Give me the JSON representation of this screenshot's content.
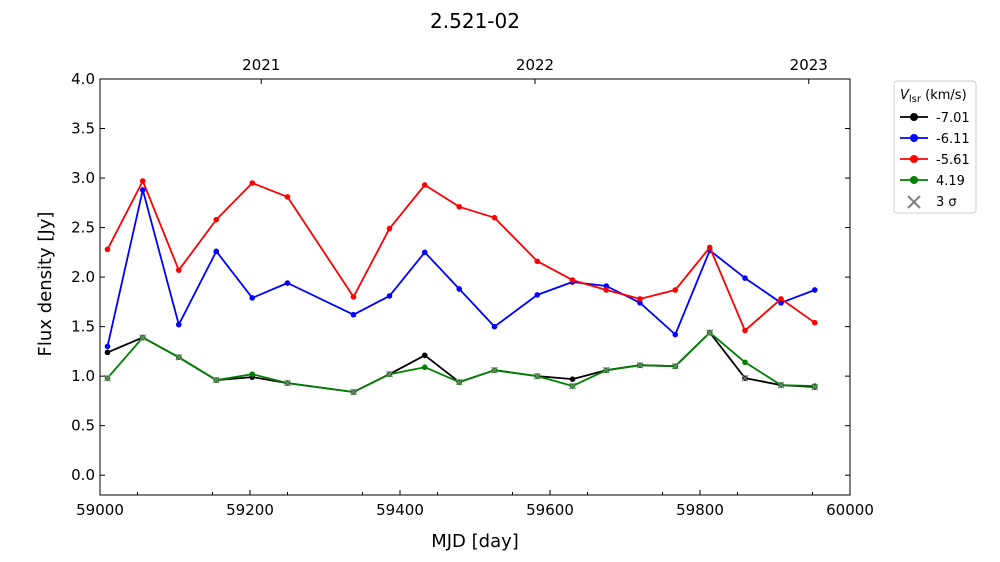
{
  "chart_data": {
    "type": "line",
    "title": "2.521-02",
    "xlabel": "MJD [day]",
    "ylabel": "Flux density [Jy]",
    "xlim": [
      59000,
      60000
    ],
    "ylim": [
      -0.2,
      4.0
    ],
    "xticks": [
      59000,
      59200,
      59400,
      59600,
      59800,
      60000
    ],
    "yticks": [
      0.0,
      0.5,
      1.0,
      1.5,
      2.0,
      2.5,
      3.0,
      3.5,
      4.0
    ],
    "top_axis": {
      "labels": [
        {
          "text": "2021",
          "mjd": 59215
        },
        {
          "text": "2022",
          "mjd": 59580
        },
        {
          "text": "2023",
          "mjd": 59945
        }
      ]
    },
    "grid": false,
    "legend": {
      "placement": "outside-right-top",
      "title_main": "V",
      "title_sub": "lsr",
      "title_unit": " (km/s)",
      "sigma_label": "3 σ"
    },
    "series": [
      {
        "name": "-7.01",
        "color": "#000000",
        "x": [
          59010,
          59057,
          59105,
          59155,
          59203,
          59250,
          59338,
          59386,
          59433,
          59479,
          59526,
          59583,
          59630,
          59675,
          59720,
          59767,
          59813,
          59860,
          59908,
          59953
        ],
        "y": [
          1.24,
          1.39,
          1.19,
          0.96,
          0.99,
          0.93,
          0.84,
          1.02,
          1.21,
          0.94,
          1.06,
          1.0,
          0.97,
          1.06,
          1.11,
          1.1,
          1.44,
          0.98,
          0.91,
          0.89
        ]
      },
      {
        "name": "-6.11",
        "color": "#0000ff",
        "x": [
          59010,
          59057,
          59105,
          59155,
          59203,
          59250,
          59338,
          59386,
          59433,
          59479,
          59526,
          59583,
          59630,
          59675,
          59720,
          59767,
          59813,
          59860,
          59908,
          59953
        ],
        "y": [
          1.3,
          2.88,
          1.52,
          2.26,
          1.79,
          1.94,
          1.62,
          1.81,
          2.25,
          1.88,
          1.5,
          1.82,
          1.95,
          1.91,
          1.74,
          1.42,
          2.27,
          1.99,
          1.74,
          1.87
        ]
      },
      {
        "name": "-5.61",
        "color": "#ff0000",
        "x": [
          59010,
          59057,
          59105,
          59155,
          59203,
          59250,
          59338,
          59386,
          59433,
          59479,
          59526,
          59583,
          59630,
          59675,
          59720,
          59767,
          59813,
          59860,
          59908,
          59953
        ],
        "y": [
          2.28,
          2.97,
          2.07,
          2.58,
          2.95,
          2.81,
          1.8,
          2.49,
          2.93,
          2.71,
          2.6,
          2.16,
          1.97,
          1.87,
          1.78,
          1.87,
          2.3,
          1.46,
          1.78,
          1.54
        ]
      },
      {
        "name": "4.19",
        "color": "#008000",
        "x": [
          59010,
          59057,
          59105,
          59155,
          59203,
          59250,
          59338,
          59386,
          59433,
          59479,
          59526,
          59583,
          59630,
          59675,
          59720,
          59767,
          59813,
          59860,
          59908,
          59953
        ],
        "y": [
          0.98,
          1.39,
          1.19,
          0.96,
          1.02,
          0.93,
          0.84,
          1.02,
          1.09,
          0.94,
          1.06,
          1.0,
          0.9,
          1.06,
          1.11,
          1.1,
          1.44,
          1.14,
          0.91,
          0.9
        ]
      }
    ],
    "sigma_marker_color": "#808080",
    "sigma_points": [
      {
        "x": 59010,
        "y": 0.98
      },
      {
        "x": 59057,
        "y": 1.39
      },
      {
        "x": 59105,
        "y": 1.19
      },
      {
        "x": 59155,
        "y": 0.96
      },
      {
        "x": 59250,
        "y": 0.93
      },
      {
        "x": 59338,
        "y": 0.84
      },
      {
        "x": 59386,
        "y": 1.02
      },
      {
        "x": 59479,
        "y": 0.94
      },
      {
        "x": 59526,
        "y": 1.06
      },
      {
        "x": 59583,
        "y": 1.0
      },
      {
        "x": 59630,
        "y": 0.9
      },
      {
        "x": 59675,
        "y": 1.06
      },
      {
        "x": 59720,
        "y": 1.11
      },
      {
        "x": 59767,
        "y": 1.1
      },
      {
        "x": 59813,
        "y": 1.44
      },
      {
        "x": 59860,
        "y": 0.98
      },
      {
        "x": 59908,
        "y": 0.91
      },
      {
        "x": 59953,
        "y": 0.89
      }
    ]
  }
}
